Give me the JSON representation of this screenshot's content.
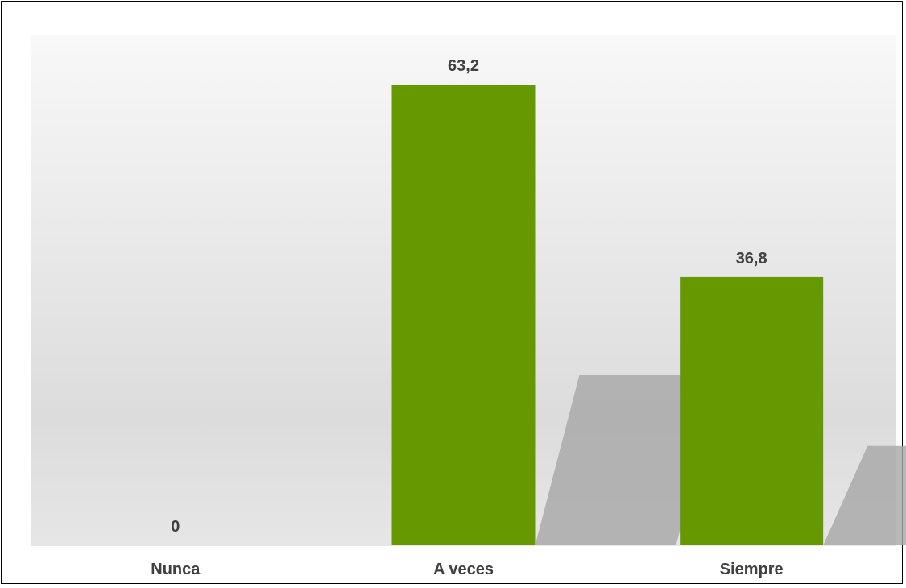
{
  "chart_data": {
    "type": "bar",
    "categories": [
      "Nunca",
      "A veces",
      "Siempre"
    ],
    "values": [
      0,
      63.2,
      36.8
    ],
    "data_labels": [
      "0",
      "63,2",
      "36,8"
    ],
    "ylim": [
      0,
      70
    ],
    "grid": false,
    "legend": "none",
    "colors": {
      "bar": "#669900",
      "label": "#404040",
      "plot_top": "#f7f7f7",
      "plot_bottom": "#d9d9d9",
      "shadow": "#a6a6a6"
    }
  }
}
